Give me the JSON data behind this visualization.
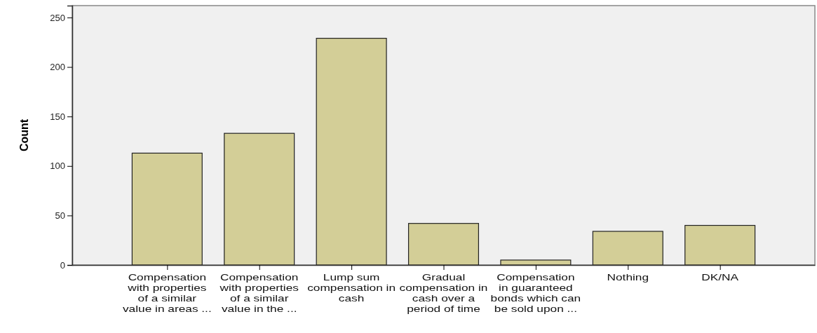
{
  "chart_data": {
    "type": "bar",
    "ylabel": "Count",
    "categories": [
      "Compensation with properties of a similar value in areas ...",
      "Compensation with properties of a similar value in the ...",
      "Lump sum compensation in cash",
      "Gradual compensation in cash over a period of time",
      "Compensation in guaranteed bonds which can be sold upon ...",
      "Nothing",
      "DK/NA"
    ],
    "values": [
      113,
      133,
      229,
      42,
      5,
      34,
      40
    ],
    "color": "#d3ce97",
    "ylim": [
      0,
      262
    ],
    "yticks": [
      0,
      50,
      100,
      150,
      200,
      250
    ],
    "grid": false
  }
}
